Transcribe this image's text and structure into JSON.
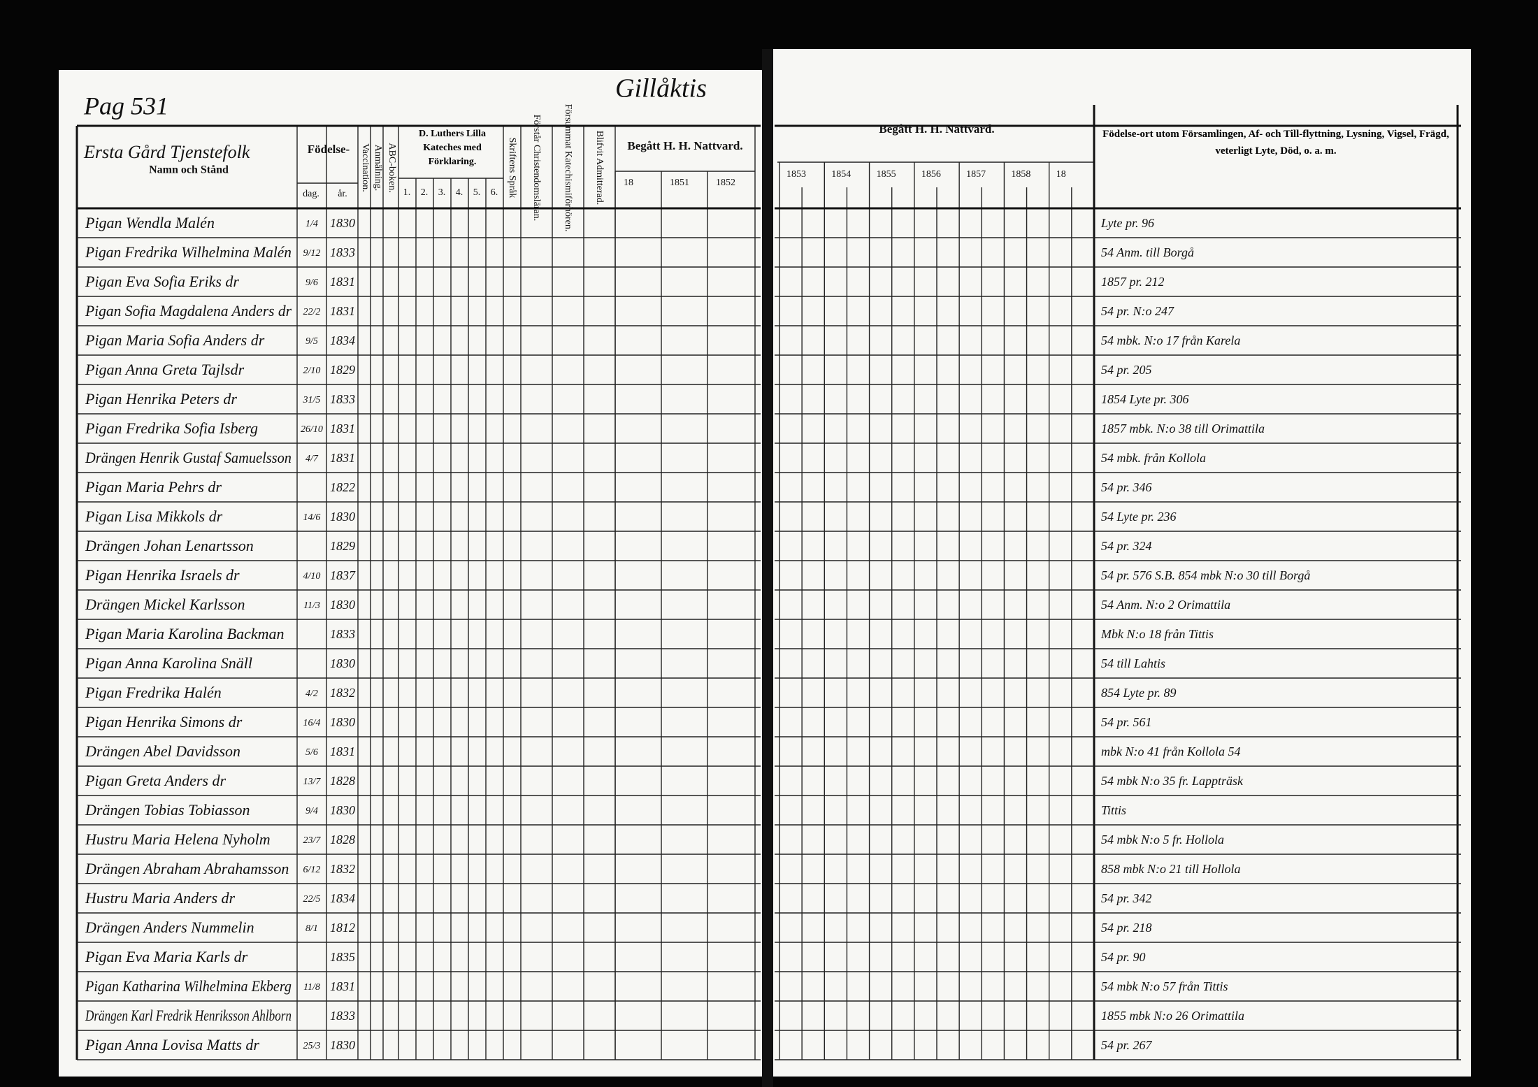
{
  "header": {
    "page_label": "Pag 531",
    "village": "Gillåktis",
    "household": "Ersta Gård Tjenstefolk",
    "name_col": "Namn och Stånd"
  },
  "left_columns": {
    "birth": "Födelse-",
    "day": "dag.",
    "year": "år.",
    "vaccination": "Vaccination.",
    "announcement": "Anmälning.",
    "abc": "ABC-boken.",
    "luther": "D. Luthers Lilla Kateches med Förklaring.",
    "luther_parts": [
      "1.",
      "2.",
      "3.",
      "4.",
      "5.",
      "6."
    ],
    "scripture": "Skriftens Språk",
    "understands": "Förstår Christendomsläran.",
    "catechism_exam": "Försummat Katechismiförhören.",
    "admitted": "Blifvit Admitterad.",
    "communion": "Begått H. H. Nattvard.",
    "communion_years": [
      "18",
      "1851",
      "1852"
    ]
  },
  "right_columns": {
    "communion": "Begått H. H. Nattvard.",
    "communion_years": [
      "1853",
      "1854",
      "1855",
      "1856",
      "1857",
      "1858",
      "18"
    ],
    "remarks": "Födelse-ort utom Församlingen, Af- och Till-flyttning, Lysning, Vigsel, Frägd, veterligt Lyte, Död, o. a. m."
  },
  "table": {
    "rows": [
      [
        "Pigan Wendla Malén",
        "1/4",
        "1830",
        "Lyte pr. 96"
      ],
      [
        "Pigan Fredrika Wilhelmina Malén",
        "9/12",
        "1833",
        "54 Anm. till Borgå"
      ],
      [
        "Pigan Eva Sofia Eriks dr",
        "9/6",
        "1831",
        "1857 pr. 212"
      ],
      [
        "Pigan Sofia Magdalena Anders dr",
        "22/2",
        "1831",
        "54 pr. N:o 247"
      ],
      [
        "Pigan Maria Sofia Anders dr",
        "9/5",
        "1834",
        "54 mbk. N:o 17 från Karela"
      ],
      [
        "Pigan Anna Greta Tajlsdr",
        "2/10",
        "1829",
        "54 pr. 205"
      ],
      [
        "Pigan Henrika Peters dr",
        "31/5",
        "1833",
        "1854 Lyte pr. 306"
      ],
      [
        "Pigan Fredrika Sofia Isberg",
        "26/10",
        "1831",
        "1857 mbk. N:o 38 till Orimattila"
      ],
      [
        "Drängen Henrik Gustaf Samuelsson",
        "4/7",
        "1831",
        "54 mbk. från Kollola"
      ],
      [
        "Pigan Maria Pehrs dr",
        "",
        "1822",
        "54 pr. 346"
      ],
      [
        "Pigan Lisa Mikkols dr",
        "14/6",
        "1830",
        "54 Lyte pr. 236"
      ],
      [
        "Drängen Johan Lenartsson",
        "",
        "1829",
        "54 pr. 324"
      ],
      [
        "Pigan Henrika Israels dr",
        "4/10",
        "1837",
        "54 pr. 576 S.B. 854 mbk N:o 30 till Borgå"
      ],
      [
        "Drängen Mickel Karlsson",
        "11/3",
        "1830",
        "54 Anm. N:o 2 Orimattila"
      ],
      [
        "Pigan Maria Karolina Backman",
        "",
        "1833",
        "Mbk N:o 18 från Tittis"
      ],
      [
        "Pigan Anna Karolina Snäll",
        "",
        "1830",
        "54 till Lahtis"
      ],
      [
        "Pigan Fredrika Halén",
        "4/2",
        "1832",
        "854 Lyte pr. 89"
      ],
      [
        "Pigan Henrika Simons dr",
        "16/4",
        "1830",
        "54 pr. 561"
      ],
      [
        "Drängen Abel Davidsson",
        "5/6",
        "1831",
        "mbk N:o 41 från Kollola 54"
      ],
      [
        "Pigan Greta Anders dr",
        "13/7",
        "1828",
        "54 mbk N:o 35 fr. Lappträsk"
      ],
      [
        "Drängen Tobias Tobiasson",
        "9/4",
        "1830",
        "Tittis"
      ],
      [
        "Hustru Maria Helena Nyholm",
        "23/7",
        "1828",
        "54 mbk N:o 5 fr. Hollola"
      ],
      [
        "Drängen Abraham Abrahamsson",
        "6/12",
        "1832",
        "858 mbk N:o 21 till Hollola"
      ],
      [
        "Hustru Maria Anders dr",
        "22/5",
        "1834",
        "54 pr. 342"
      ],
      [
        "Drängen Anders Nummelin",
        "8/1",
        "1812",
        "54 pr. 218"
      ],
      [
        "Pigan Eva Maria Karls dr",
        "",
        "1835",
        "54 pr. 90"
      ],
      [
        "Pigan Katharina Wilhelmina Ekberg",
        "11/8",
        "1831",
        "54 mbk N:o 57 från Tittis"
      ],
      [
        "Drängen Karl Fredrik Henriksson Ahlborn",
        "",
        "1833",
        "1855 mbk N:o 26 Orimattila"
      ],
      [
        "Pigan Anna Lovisa Matts dr",
        "25/3",
        "1830",
        "54 pr. 267"
      ]
    ]
  }
}
